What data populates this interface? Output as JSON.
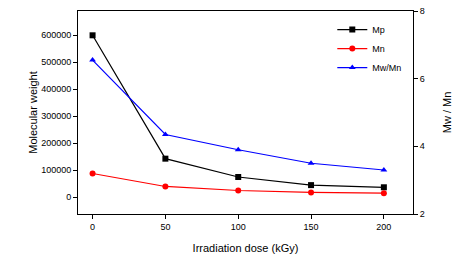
{
  "chart_data": {
    "type": "line",
    "x_label": "Irradiation dose (kGy)",
    "y_label": "Molecular weight",
    "y2_label": "Mw / Mn",
    "x": [
      0,
      50,
      100,
      150,
      200
    ],
    "series": [
      {
        "name": "Mp",
        "color": "#000000",
        "marker": "square",
        "values": [
          600000,
          143000,
          75000,
          45000,
          37000
        ]
      },
      {
        "name": "Mn",
        "color": "#ff0000",
        "marker": "circle",
        "values": [
          88000,
          40000,
          25000,
          18000,
          15000
        ]
      },
      {
        "name": "Mw/Mn",
        "color": "#0000ff",
        "marker": "triangle-up",
        "axis": "y2",
        "values": [
          6.55,
          4.35,
          3.9,
          3.5,
          3.3
        ]
      }
    ],
    "xlim": [
      -10,
      220
    ],
    "xticks": [
      0,
      50,
      100,
      150,
      200
    ],
    "ylim": [
      -62000,
      690000
    ],
    "yticks": [
      0,
      100000,
      200000,
      300000,
      400000,
      500000,
      600000
    ],
    "y2lim": [
      2,
      8
    ],
    "y2ticks": [
      2,
      4,
      6,
      8
    ],
    "legend": "upper right",
    "grid": false
  }
}
